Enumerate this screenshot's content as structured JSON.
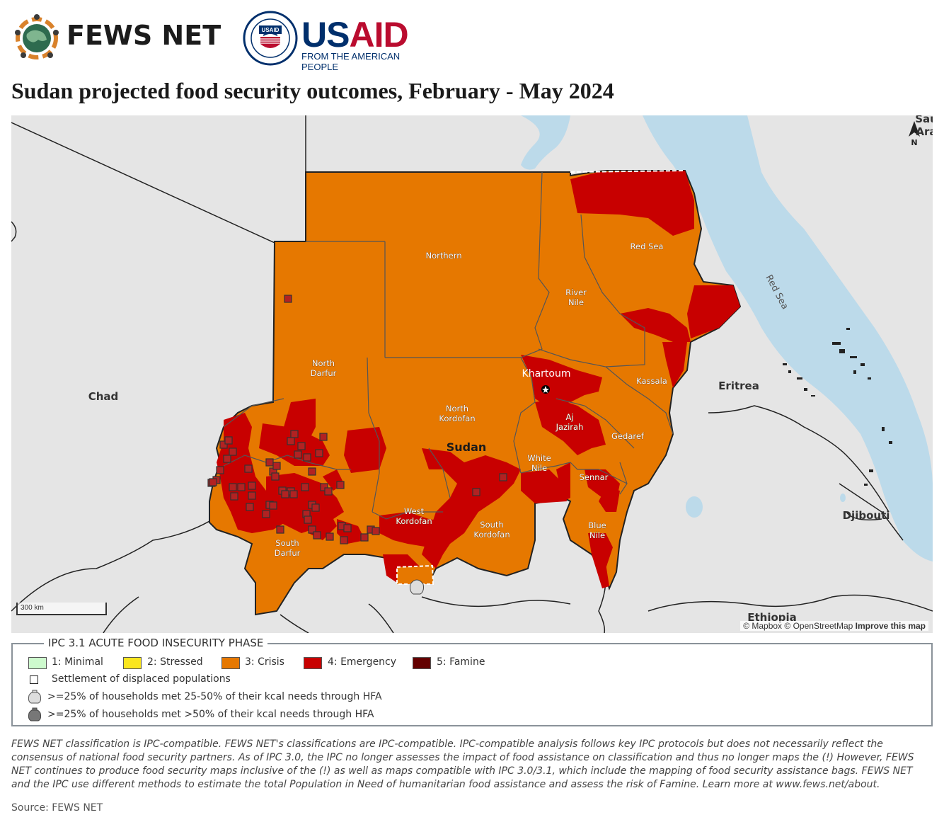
{
  "header": {
    "fews_brand": "FEWS NET",
    "usaid_us": "US",
    "usaid_aid": "AID",
    "usaid_tagline": "FROM THE AMERICAN PEOPLE",
    "usaid_seal_text": "USAID"
  },
  "title": "Sudan projected food security outcomes, February - May 2024",
  "map": {
    "regions": [
      {
        "name": "Northern",
        "phase": 3
      },
      {
        "name": "River Nile",
        "phase": 3
      },
      {
        "name": "Red Sea",
        "phase": 3
      },
      {
        "name": "Khartoum",
        "phase": 4
      },
      {
        "name": "Kassala",
        "phase": 3
      },
      {
        "name": "Aj Jazirah",
        "phase": 4
      },
      {
        "name": "Gedaref",
        "phase": 3
      },
      {
        "name": "White Nile",
        "phase": 3
      },
      {
        "name": "Sennar",
        "phase": 3
      },
      {
        "name": "Blue Nile",
        "phase": 3
      },
      {
        "name": "North Darfur",
        "phase": 3
      },
      {
        "name": "South Darfur",
        "phase": 3
      },
      {
        "name": "North Kordofan",
        "phase": 3
      },
      {
        "name": "West Kordofan",
        "phase": 3
      },
      {
        "name": "South Kordofan",
        "phase": 3
      }
    ],
    "labels": {
      "northern": "Northern",
      "river_nile_1": "River",
      "river_nile_2": "Nile",
      "red_sea": "Red Sea",
      "khartoum": "Khartoum",
      "kassala": "Kassala",
      "aj_1": "Aj",
      "aj_2": "Jazirah",
      "gedaref": "Gedaref",
      "white_1": "White",
      "white_2": "Nile",
      "sennar": "Sennar",
      "blue_1": "Blue",
      "blue_2": "Nile",
      "nd_1": "North",
      "nd_2": "Darfur",
      "sd_1": "South",
      "sd_2": "Darfur",
      "nk_1": "North",
      "nk_2": "Kordofan",
      "wk_1": "West",
      "wk_2": "Kordofan",
      "sk_1": "South",
      "sk_2": "Kordofan",
      "sudan": "Sudan",
      "chad": "Chad",
      "eritrea": "Eritrea",
      "djibouti": "Djibouti",
      "ethiopia": "Ethiopia",
      "red_sea_water": "Red Sea",
      "saudi_1": "Sau",
      "saudi_2": "Ara",
      "north_arrow": "N"
    },
    "scale_label": "300 km",
    "attribution": {
      "mapbox": "© Mapbox",
      "osm": "© OpenStreetMap",
      "improve": "Improve this map"
    },
    "colors": {
      "crisis": "#e67800",
      "emergency": "#c80000",
      "famine": "#640000",
      "water": "#bcdaea",
      "land": "#e5e5e5"
    }
  },
  "legend": {
    "title": "IPC 3.1 ACUTE FOOD INSECURITY PHASE",
    "phases": [
      {
        "label": "1: Minimal",
        "color": "#cdfacd"
      },
      {
        "label": "2: Stressed",
        "color": "#fae61e"
      },
      {
        "label": "3: Crisis",
        "color": "#e67800"
      },
      {
        "label": "4: Emergency",
        "color": "#c80000"
      },
      {
        "label": "5: Famine",
        "color": "#640000"
      }
    ],
    "settlement": "Settlement of displaced populations",
    "hfa_low": ">=25% of households met 25-50% of their kcal needs through HFA",
    "hfa_high": ">=25% of households met >50% of their kcal needs through HFA"
  },
  "disclaimer": "FEWS NET classification is IPC-compatible. FEWS NET's classifications are IPC-compatible. IPC-compatible analysis follows key IPC protocols but does not necessarily reflect the consensus of national food security partners. As of IPC 3.0, the IPC no longer assesses the impact of food assistance on classification and thus no longer maps the (!) However, FEWS NET continues to produce food security maps inclusive of the (!) as well as maps compatible with IPC 3.0/3.1, which include the mapping of food security assistance bags. FEWS NET and the IPC use different methods to estimate the total Population in Need of humanitarian food assistance and assess the risk of Famine. Learn more at www.fews.net/about.",
  "source": "Source: FEWS NET"
}
